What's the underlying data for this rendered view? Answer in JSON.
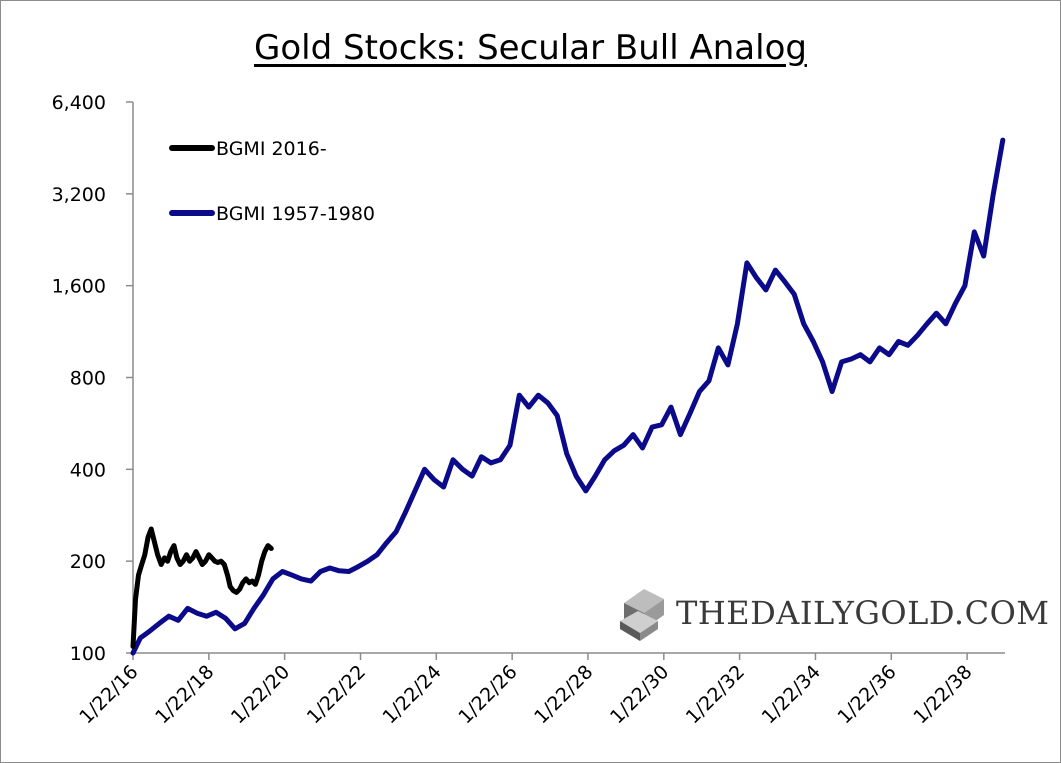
{
  "chart_data": {
    "type": "line",
    "title": "Gold Stocks: Secular Bull Analog",
    "xlabel": "",
    "ylabel": "",
    "yscale": "log2",
    "ylim": [
      100,
      6400
    ],
    "xlim": [
      "2016-01-22",
      "2039-01-22"
    ],
    "yticks": [
      "6,400",
      "3,200",
      "1,600",
      "800",
      "400",
      "200",
      "100"
    ],
    "ytick_values": [
      6400,
      3200,
      1600,
      800,
      400,
      200,
      100
    ],
    "xticks": [
      "1/22/16",
      "1/22/18",
      "1/22/20",
      "1/22/22",
      "1/22/24",
      "1/22/26",
      "1/22/28",
      "1/22/30",
      "1/22/32",
      "1/22/34",
      "1/22/36",
      "1/22/38"
    ],
    "xtick_values": [
      "2016-01-22",
      "2018-01-22",
      "2020-01-22",
      "2022-01-22",
      "2024-01-22",
      "2026-01-22",
      "2028-01-22",
      "2030-01-22",
      "2032-01-22",
      "2034-01-22",
      "2036-01-22",
      "2038-01-22"
    ],
    "grid": false,
    "legend_position": "top-left",
    "series": [
      {
        "name": "BGMI 2016-",
        "color": "#000000",
        "x": [
          "2016-01-22",
          "2016-02-15",
          "2016-03-15",
          "2016-04-15",
          "2016-05-15",
          "2016-06-15",
          "2016-07-15",
          "2016-08-10",
          "2016-09-15",
          "2016-10-20",
          "2016-11-20",
          "2016-12-20",
          "2017-01-20",
          "2017-02-20",
          "2017-03-20",
          "2017-04-20",
          "2017-05-20",
          "2017-06-20",
          "2017-07-20",
          "2017-08-20",
          "2017-09-20",
          "2017-10-20",
          "2017-11-20",
          "2017-12-20",
          "2018-01-22",
          "2018-02-20",
          "2018-03-20",
          "2018-04-20",
          "2018-05-20",
          "2018-06-20",
          "2018-07-20",
          "2018-08-15",
          "2018-09-15",
          "2018-10-15",
          "2018-11-15",
          "2018-12-15",
          "2019-01-15",
          "2019-02-15",
          "2019-03-15",
          "2019-04-15",
          "2019-05-15",
          "2019-06-15",
          "2019-07-15",
          "2019-08-15",
          "2019-09-15"
        ],
        "values": [
          105,
          150,
          180,
          195,
          210,
          240,
          255,
          235,
          210,
          195,
          205,
          200,
          215,
          225,
          205,
          195,
          200,
          210,
          200,
          205,
          215,
          205,
          195,
          200,
          210,
          205,
          200,
          198,
          200,
          195,
          180,
          165,
          160,
          158,
          162,
          170,
          175,
          170,
          172,
          168,
          180,
          200,
          215,
          225,
          220
        ]
      },
      {
        "name": "BGMI 1957-1980",
        "color": "#0a0a8a",
        "x": [
          "2016-01-22",
          "2016-04-01",
          "2016-07-01",
          "2016-10-01",
          "2017-01-01",
          "2017-04-01",
          "2017-07-01",
          "2017-10-01",
          "2018-01-01",
          "2018-04-01",
          "2018-07-01",
          "2018-10-01",
          "2019-01-01",
          "2019-04-01",
          "2019-07-01",
          "2019-10-01",
          "2020-01-01",
          "2020-04-01",
          "2020-07-01",
          "2020-10-01",
          "2021-01-01",
          "2021-04-01",
          "2021-07-01",
          "2021-10-01",
          "2022-01-01",
          "2022-04-01",
          "2022-07-01",
          "2022-10-01",
          "2023-01-01",
          "2023-04-01",
          "2023-07-01",
          "2023-10-01",
          "2024-01-01",
          "2024-04-01",
          "2024-07-01",
          "2024-10-01",
          "2025-01-01",
          "2025-04-01",
          "2025-07-01",
          "2025-10-01",
          "2026-01-01",
          "2026-04-01",
          "2026-07-01",
          "2026-10-01",
          "2027-01-01",
          "2027-04-01",
          "2027-07-01",
          "2027-10-01",
          "2028-01-01",
          "2028-04-01",
          "2028-07-01",
          "2028-10-01",
          "2029-01-01",
          "2029-04-01",
          "2029-07-01",
          "2029-10-01",
          "2030-01-01",
          "2030-04-01",
          "2030-07-01",
          "2030-10-01",
          "2031-01-01",
          "2031-04-01",
          "2031-07-01",
          "2031-10-01",
          "2032-01-01",
          "2032-04-01",
          "2032-07-01",
          "2032-10-01",
          "2033-01-01",
          "2033-04-01",
          "2033-07-01",
          "2033-10-01",
          "2034-01-01",
          "2034-04-01",
          "2034-07-01",
          "2034-10-01",
          "2035-01-01",
          "2035-04-01",
          "2035-07-01",
          "2035-10-01",
          "2036-01-01",
          "2036-04-01",
          "2036-07-01",
          "2036-10-01",
          "2037-01-01",
          "2037-04-01",
          "2037-07-01",
          "2037-10-01",
          "2038-01-01",
          "2038-04-01",
          "2038-07-01",
          "2038-10-01",
          "2039-01-01"
        ],
        "values": [
          100,
          112,
          118,
          125,
          132,
          128,
          140,
          135,
          132,
          136,
          130,
          120,
          125,
          140,
          155,
          175,
          185,
          180,
          175,
          172,
          185,
          190,
          186,
          185,
          192,
          200,
          210,
          230,
          250,
          290,
          340,
          400,
          370,
          350,
          430,
          400,
          380,
          440,
          420,
          430,
          480,
          700,
          640,
          700,
          660,
          600,
          450,
          380,
          340,
          380,
          430,
          460,
          480,
          520,
          470,
          550,
          560,
          640,
          520,
          610,
          720,
          780,
          1000,
          880,
          1200,
          1900,
          1700,
          1550,
          1800,
          1650,
          1500,
          1200,
          1050,
          900,
          720,
          900,
          920,
          950,
          900,
          1000,
          950,
          1050,
          1020,
          1100,
          1200,
          1300,
          1200,
          1400,
          1600,
          2400,
          2000,
          3200,
          4800
        ]
      }
    ],
    "annotation": "THEDAILYGOLD.COM"
  }
}
